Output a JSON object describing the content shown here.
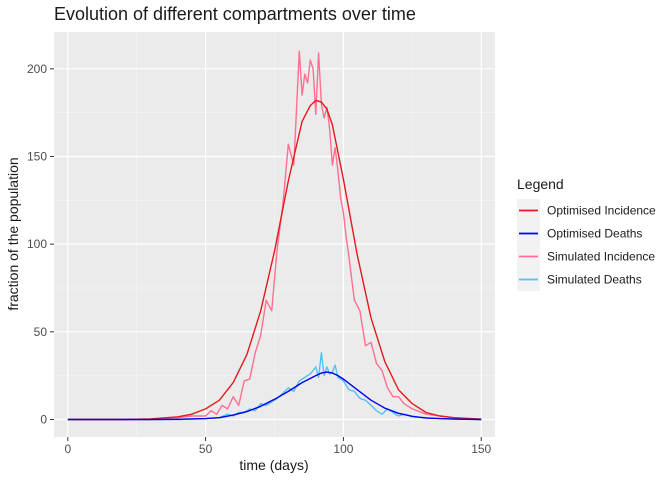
{
  "chart_data": {
    "type": "line",
    "title": "Evolution of different compartments over time",
    "xlabel": "time (days)",
    "ylabel": "fraction of the population",
    "xlim": [
      -5,
      155
    ],
    "ylim": [
      -10,
      221
    ],
    "xticks": [
      0,
      50,
      100,
      150
    ],
    "yticks": [
      0,
      50,
      100,
      150,
      200
    ],
    "grid": true,
    "legend": {
      "title": "Legend",
      "position": "right"
    },
    "series": [
      {
        "name": "Optimised Incidence",
        "color": "#e41a1c",
        "x": [
          0,
          10,
          20,
          30,
          40,
          45,
          50,
          55,
          60,
          65,
          70,
          75,
          80,
          85,
          88,
          90,
          92,
          94,
          96,
          100,
          105,
          110,
          115,
          120,
          125,
          130,
          135,
          140,
          150
        ],
        "y": [
          0,
          0,
          0,
          0.3,
          1.5,
          3,
          6,
          11,
          21,
          37,
          62,
          96,
          136,
          170,
          179,
          182,
          181,
          177,
          168,
          137,
          94,
          58,
          33,
          17,
          9,
          4,
          2,
          1,
          0.2
        ]
      },
      {
        "name": "Optimised Deaths",
        "color": "#0000ee",
        "x": [
          0,
          30,
          40,
          50,
          55,
          60,
          65,
          70,
          75,
          80,
          85,
          90,
          92,
          94,
          96,
          98,
          100,
          105,
          110,
          115,
          120,
          125,
          130,
          140,
          150
        ],
        "y": [
          0,
          0,
          0.1,
          0.5,
          1,
          2.5,
          4.5,
          7.5,
          11.5,
          16,
          21,
          25,
          26.5,
          27,
          26.5,
          25,
          23,
          17,
          11,
          6.5,
          3.5,
          1.8,
          0.8,
          0.2,
          0
        ]
      },
      {
        "name": "Simulated Incidence",
        "color": "#ff6f91",
        "x": [
          0,
          30,
          35,
          40,
          45,
          50,
          52,
          54,
          56,
          58,
          60,
          62,
          64,
          66,
          68,
          70,
          72,
          74,
          76,
          78,
          80,
          82,
          84,
          85,
          86,
          87,
          88,
          89,
          90,
          91,
          92,
          93,
          94,
          95,
          96,
          97,
          98,
          99,
          100,
          101,
          102,
          103,
          104,
          106,
          108,
          110,
          112,
          114,
          116,
          118,
          120,
          122,
          125,
          130,
          135,
          140,
          145,
          150
        ],
        "y": [
          0,
          0,
          0.5,
          1,
          2,
          2,
          5,
          3,
          8,
          6,
          13,
          8,
          22,
          23,
          38,
          48,
          68,
          62,
          98,
          122,
          157,
          145,
          210,
          185,
          197,
          192,
          205,
          200,
          174,
          209,
          180,
          172,
          178,
          166,
          145,
          155,
          142,
          126,
          118,
          104,
          93,
          80,
          68,
          62,
          42,
          44,
          32,
          28,
          18,
          13,
          13,
          9,
          6,
          3,
          2,
          1,
          0.5,
          0
        ]
      },
      {
        "name": "Simulated Deaths",
        "color": "#4fc3f7",
        "x": [
          0,
          40,
          50,
          55,
          58,
          60,
          62,
          64,
          66,
          68,
          70,
          72,
          74,
          76,
          78,
          80,
          82,
          84,
          86,
          88,
          90,
          91,
          92,
          93,
          94,
          95,
          96,
          97,
          98,
          100,
          102,
          104,
          106,
          108,
          110,
          112,
          114,
          116,
          118,
          120,
          122,
          125,
          130,
          135,
          140,
          150
        ],
        "y": [
          0,
          0,
          0.5,
          1,
          3,
          2,
          4,
          4,
          6,
          5,
          9,
          8,
          10,
          12,
          15,
          18,
          16,
          22,
          24,
          26,
          30,
          24,
          38,
          25,
          30,
          26,
          27,
          31,
          24,
          22,
          17,
          16,
          12,
          11,
          8,
          5,
          3,
          6,
          4,
          2,
          3,
          1.5,
          1,
          0.5,
          0.2,
          0
        ]
      }
    ]
  }
}
